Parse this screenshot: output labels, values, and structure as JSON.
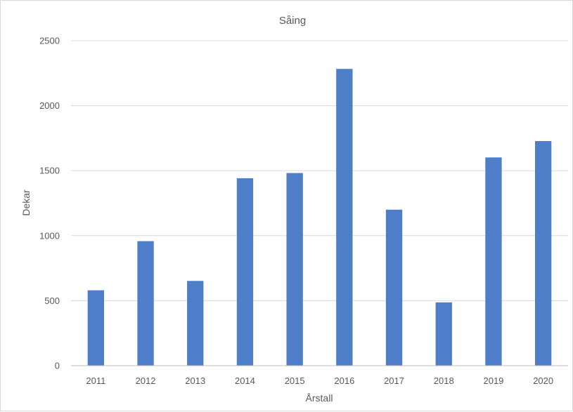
{
  "chart_data": {
    "type": "bar",
    "title": "Såing",
    "xlabel": "Årstall",
    "ylabel": "Dekar",
    "categories": [
      "2011",
      "2012",
      "2013",
      "2014",
      "2015",
      "2016",
      "2017",
      "2018",
      "2019",
      "2020"
    ],
    "values": [
      580,
      958,
      652,
      1442,
      1482,
      2283,
      1200,
      487,
      1602,
      1728
    ],
    "ylim": [
      0,
      2500
    ],
    "yticks": [
      0,
      500,
      1000,
      1500,
      2000,
      2500
    ],
    "grid": true,
    "legend": "none",
    "bar_color": "#4e7ec8"
  }
}
